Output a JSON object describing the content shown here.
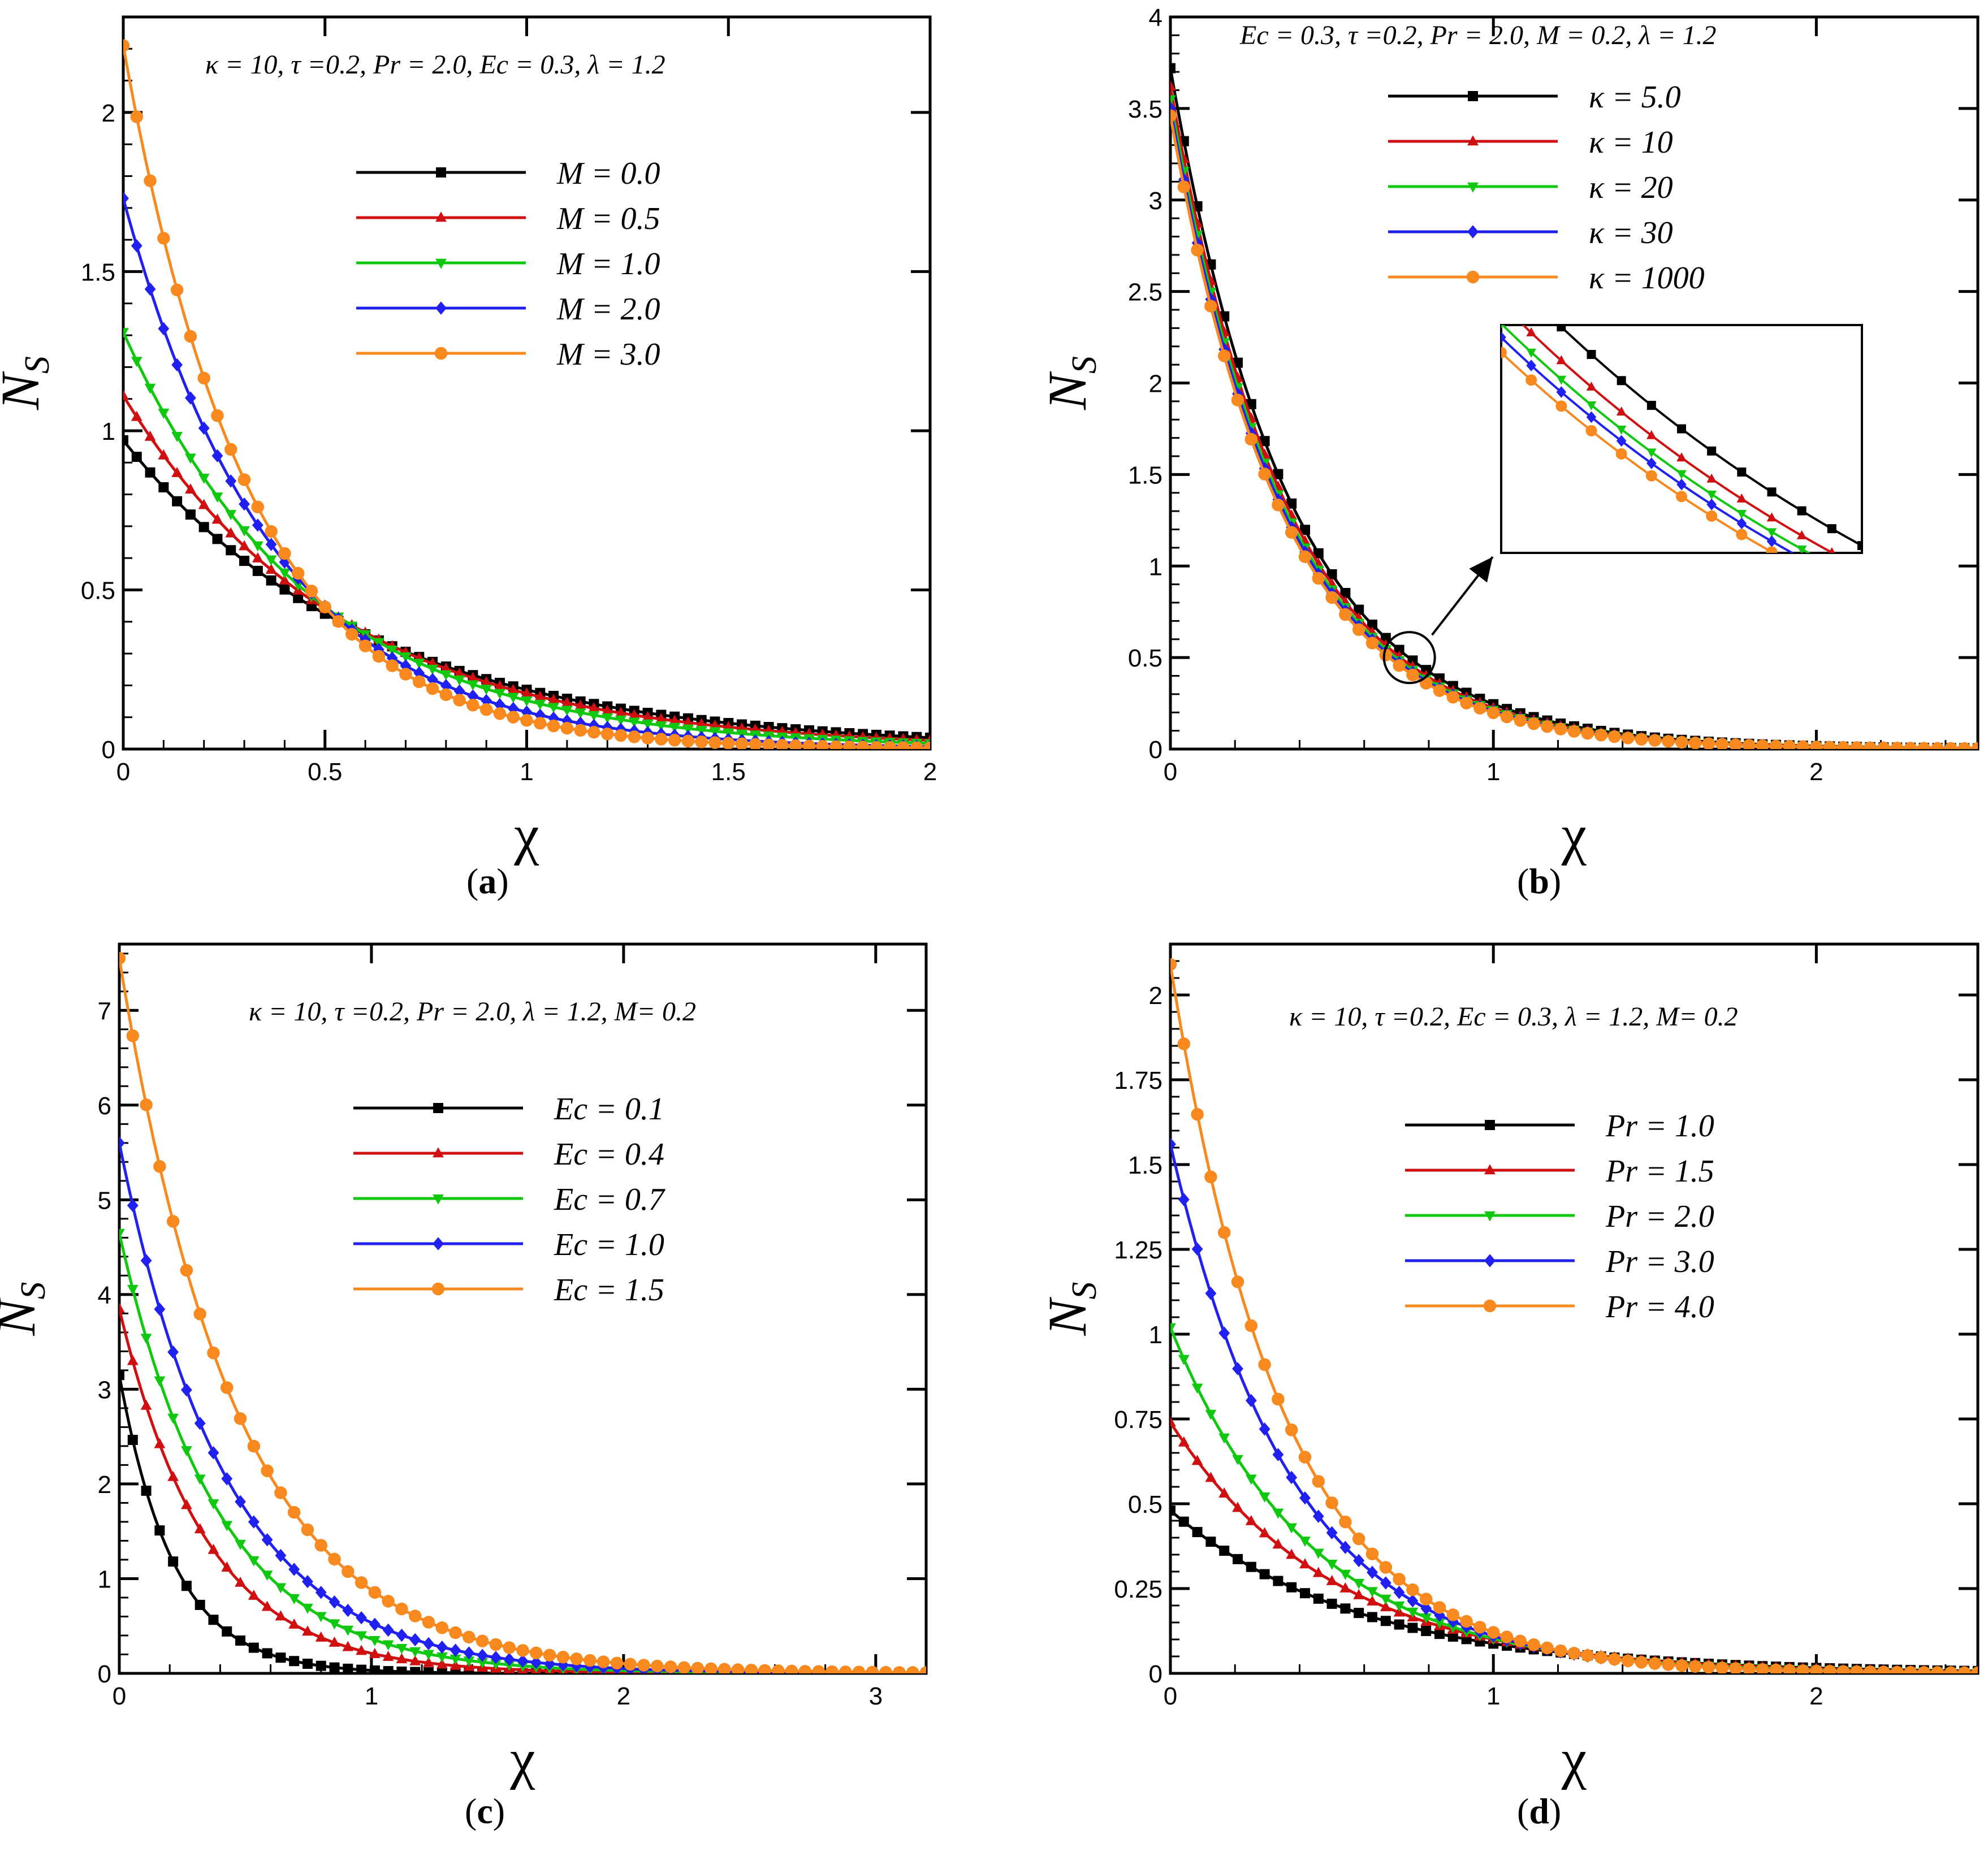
{
  "colors": {
    "black": "#000000",
    "red": "#d01010",
    "green": "#10c810",
    "blue": "#2020f0",
    "orange": "#f7891f"
  },
  "chart_data": [
    {
      "type": "line",
      "panel": "a",
      "panel_letter": "a",
      "params": "κ = 10, τ =0.2, Pr = 2.0, Ec = 0.3, λ = 1.2",
      "xlabel": "χ",
      "ylabel_main": "N",
      "ylabel_sub": "S",
      "xlim": [
        0,
        2
      ],
      "ylim": [
        0,
        2.3
      ],
      "xticks": [
        0,
        0.5,
        1,
        1.5,
        2
      ],
      "xtick_labels": [
        "0",
        "0.5",
        "1",
        "1.5",
        "2"
      ],
      "yticks": [
        0,
        0.5,
        1,
        1.5,
        2
      ],
      "ytick_labels": [
        "0",
        "0.5",
        "1",
        "1.5",
        "2"
      ],
      "series": [
        {
          "name": "M = 0.0",
          "color": "black",
          "marker": "square",
          "y0": 0.97,
          "decay": 1.65
        },
        {
          "name": "M = 0.5",
          "color": "red",
          "marker": "triangle-up",
          "y0": 1.11,
          "decay": 1.85
        },
        {
          "name": "M = 1.0",
          "color": "green",
          "marker": "triangle-down",
          "y0": 1.31,
          "decay": 2.15
        },
        {
          "name": "M = 2.0",
          "color": "blue",
          "marker": "diamond",
          "y0": 1.73,
          "decay": 2.7
        },
        {
          "name": "M = 3.0",
          "color": "orange",
          "marker": "circle",
          "y0": 2.21,
          "decay": 3.2
        }
      ]
    },
    {
      "type": "line",
      "panel": "b",
      "panel_letter": "b",
      "params": "Ec = 0.3, τ =0.2, Pr = 2.0, M = 0.2, λ = 1.2",
      "xlabel": "χ",
      "ylabel_main": "N",
      "ylabel_sub": "S",
      "xlim": [
        0,
        2.5
      ],
      "ylim": [
        0,
        4
      ],
      "xticks": [
        0,
        1,
        2
      ],
      "xtick_labels": [
        "0",
        "1",
        "2"
      ],
      "yticks": [
        0,
        0.5,
        1,
        1.5,
        2,
        2.5,
        3,
        3.5,
        4
      ],
      "ytick_labels": [
        "0",
        "0.5",
        "1",
        "1.5",
        "2",
        "2.5",
        "3",
        "3.5",
        "4"
      ],
      "series": [
        {
          "name": "κ = 5.0",
          "color": "black",
          "marker": "square",
          "y0": 3.72,
          "decay": 2.72
        },
        {
          "name": "κ = 10",
          "color": "red",
          "marker": "triangle-up",
          "y0": 3.62,
          "decay": 2.78
        },
        {
          "name": "κ = 20",
          "color": "green",
          "marker": "triangle-down",
          "y0": 3.55,
          "decay": 2.81
        },
        {
          "name": "κ = 30",
          "color": "blue",
          "marker": "diamond",
          "y0": 3.5,
          "decay": 2.83
        },
        {
          "name": "κ = 1000",
          "color": "orange",
          "marker": "circle",
          "y0": 3.46,
          "decay": 2.86
        }
      ],
      "has_inset": true
    },
    {
      "type": "line",
      "panel": "c",
      "panel_letter": "c",
      "params": "κ = 10, τ =0.2, Pr = 2.0, λ = 1.2, M= 0.2",
      "xlabel": "χ",
      "ylabel_main": "N",
      "ylabel_sub": "S",
      "xlim": [
        0,
        3.2
      ],
      "ylim": [
        0,
        7.7
      ],
      "xticks": [
        0,
        1,
        2,
        3
      ],
      "xtick_labels": [
        "0",
        "1",
        "2",
        "3"
      ],
      "yticks": [
        0,
        1,
        2,
        3,
        4,
        5,
        6,
        7
      ],
      "ytick_labels": [
        "0",
        "1",
        "2",
        "3",
        "4",
        "5",
        "6",
        "7"
      ],
      "series": [
        {
          "name": "Ec = 0.1",
          "color": "black",
          "marker": "square",
          "y0": 3.15,
          "decay": 4.6
        },
        {
          "name": "Ec = 0.4",
          "color": "red",
          "marker": "triangle-up",
          "y0": 3.85,
          "decay": 2.9
        },
        {
          "name": "Ec = 0.7",
          "color": "green",
          "marker": "triangle-down",
          "y0": 4.65,
          "decay": 2.55
        },
        {
          "name": "Ec = 1.0",
          "color": "blue",
          "marker": "diamond",
          "y0": 5.6,
          "decay": 2.35
        },
        {
          "name": "Ec = 1.5",
          "color": "orange",
          "marker": "circle",
          "y0": 7.55,
          "decay": 2.15
        }
      ]
    },
    {
      "type": "line",
      "panel": "d",
      "panel_letter": "d",
      "params": "κ = 10, τ =0.2, Ec = 0.3, λ = 1.2, M= 0.2",
      "xlabel": "χ",
      "ylabel_main": "N",
      "ylabel_sub": "S",
      "xlim": [
        0,
        2.5
      ],
      "ylim": [
        0,
        2.15
      ],
      "xticks": [
        0,
        1,
        2
      ],
      "xtick_labels": [
        "0",
        "1",
        "2"
      ],
      "yticks": [
        0,
        0.25,
        0.5,
        0.75,
        1,
        1.25,
        1.5,
        1.75,
        2
      ],
      "ytick_labels": [
        "0",
        "0.25",
        "0.5",
        "0.75",
        "1",
        "1.25",
        "1.5",
        "1.75",
        "2"
      ],
      "series": [
        {
          "name": "Pr = 1.0",
          "color": "black",
          "marker": "square",
          "y0": 0.48,
          "decay": 1.7
        },
        {
          "name": "Pr = 1.5",
          "color": "red",
          "marker": "triangle-up",
          "y0": 0.74,
          "decay": 2.0
        },
        {
          "name": "Pr = 2.0",
          "color": "green",
          "marker": "triangle-down",
          "y0": 1.02,
          "decay": 2.3
        },
        {
          "name": "Pr = 3.0",
          "color": "blue",
          "marker": "diamond",
          "y0": 1.56,
          "decay": 2.65
        },
        {
          "name": "Pr = 4.0",
          "color": "orange",
          "marker": "circle",
          "y0": 2.09,
          "decay": 2.85
        }
      ]
    }
  ]
}
